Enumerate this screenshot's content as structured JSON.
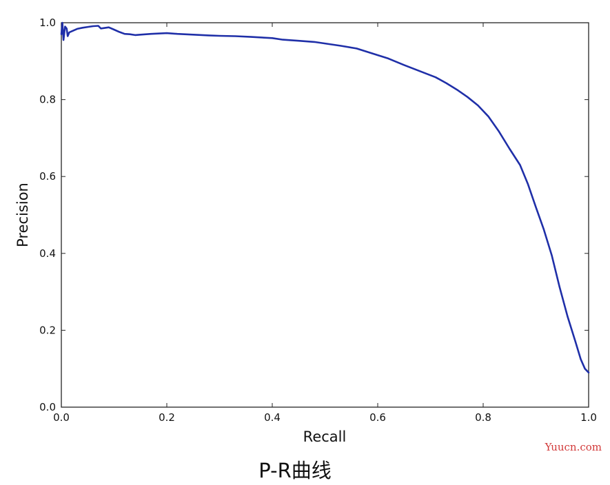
{
  "chart_data": {
    "type": "line",
    "xlabel": "Recall",
    "ylabel": "Precision",
    "xlim": [
      0.0,
      1.0
    ],
    "ylim": [
      0.0,
      1.0
    ],
    "grid": false,
    "legend": "none",
    "x_ticks": [
      "0.0",
      "0.2",
      "0.4",
      "0.6",
      "0.8",
      "1.0"
    ],
    "y_ticks": [
      "0.0",
      "0.2",
      "0.4",
      "0.6",
      "0.8",
      "1.0"
    ],
    "series": [
      {
        "color": "#1f2fa8",
        "points": [
          [
            0.0,
            0.97
          ],
          [
            0.002,
            1.0
          ],
          [
            0.004,
            0.955
          ],
          [
            0.007,
            0.99
          ],
          [
            0.01,
            0.985
          ],
          [
            0.012,
            0.965
          ],
          [
            0.015,
            0.975
          ],
          [
            0.02,
            0.978
          ],
          [
            0.03,
            0.984
          ],
          [
            0.04,
            0.987
          ],
          [
            0.05,
            0.989
          ],
          [
            0.06,
            0.991
          ],
          [
            0.07,
            0.992
          ],
          [
            0.075,
            0.985
          ],
          [
            0.08,
            0.986
          ],
          [
            0.09,
            0.988
          ],
          [
            0.1,
            0.982
          ],
          [
            0.11,
            0.976
          ],
          [
            0.12,
            0.971
          ],
          [
            0.13,
            0.97
          ],
          [
            0.14,
            0.968
          ],
          [
            0.15,
            0.969
          ],
          [
            0.17,
            0.971
          ],
          [
            0.2,
            0.973
          ],
          [
            0.22,
            0.971
          ],
          [
            0.25,
            0.969
          ],
          [
            0.28,
            0.967
          ],
          [
            0.3,
            0.966
          ],
          [
            0.33,
            0.965
          ],
          [
            0.36,
            0.963
          ],
          [
            0.4,
            0.96
          ],
          [
            0.42,
            0.956
          ],
          [
            0.45,
            0.953
          ],
          [
            0.48,
            0.95
          ],
          [
            0.5,
            0.946
          ],
          [
            0.53,
            0.94
          ],
          [
            0.56,
            0.933
          ],
          [
            0.59,
            0.92
          ],
          [
            0.62,
            0.907
          ],
          [
            0.65,
            0.89
          ],
          [
            0.68,
            0.874
          ],
          [
            0.71,
            0.858
          ],
          [
            0.73,
            0.843
          ],
          [
            0.75,
            0.826
          ],
          [
            0.77,
            0.807
          ],
          [
            0.79,
            0.785
          ],
          [
            0.81,
            0.756
          ],
          [
            0.83,
            0.717
          ],
          [
            0.85,
            0.672
          ],
          [
            0.87,
            0.63
          ],
          [
            0.885,
            0.58
          ],
          [
            0.9,
            0.52
          ],
          [
            0.915,
            0.462
          ],
          [
            0.93,
            0.395
          ],
          [
            0.945,
            0.312
          ],
          [
            0.96,
            0.236
          ],
          [
            0.975,
            0.17
          ],
          [
            0.985,
            0.125
          ],
          [
            0.993,
            0.1
          ],
          [
            1.0,
            0.09
          ]
        ]
      }
    ]
  },
  "caption": "P-R曲线",
  "watermark": "Yuucn.com"
}
